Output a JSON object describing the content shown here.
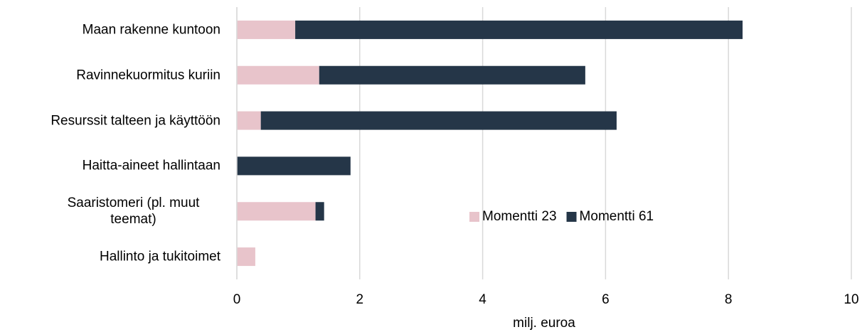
{
  "chart_data": {
    "type": "stacked_barh",
    "categories": [
      "Maan rakenne kuntoon",
      "Ravinnekuormitus kuriin",
      "Resurssit talteen ja käyttöön",
      "Haitta-aineet hallintaan",
      "Saaristomeri (pl. muut teemat)",
      "Hallinto ja tukitoimet"
    ],
    "series": [
      {
        "name": "Momentti 23",
        "color": "#e8c4cb",
        "values": [
          0.95,
          1.34,
          0.39,
          0,
          1.28,
          0.3
        ]
      },
      {
        "name": "Momentti 61",
        "color": "#253648",
        "values": [
          7.28,
          4.33,
          5.79,
          1.85,
          0.14,
          0
        ]
      }
    ],
    "xlabel": "milj. euroa",
    "xlim": [
      0,
      10
    ],
    "xticks": [
      0,
      2,
      4,
      6,
      8,
      10
    ],
    "grid": true
  }
}
